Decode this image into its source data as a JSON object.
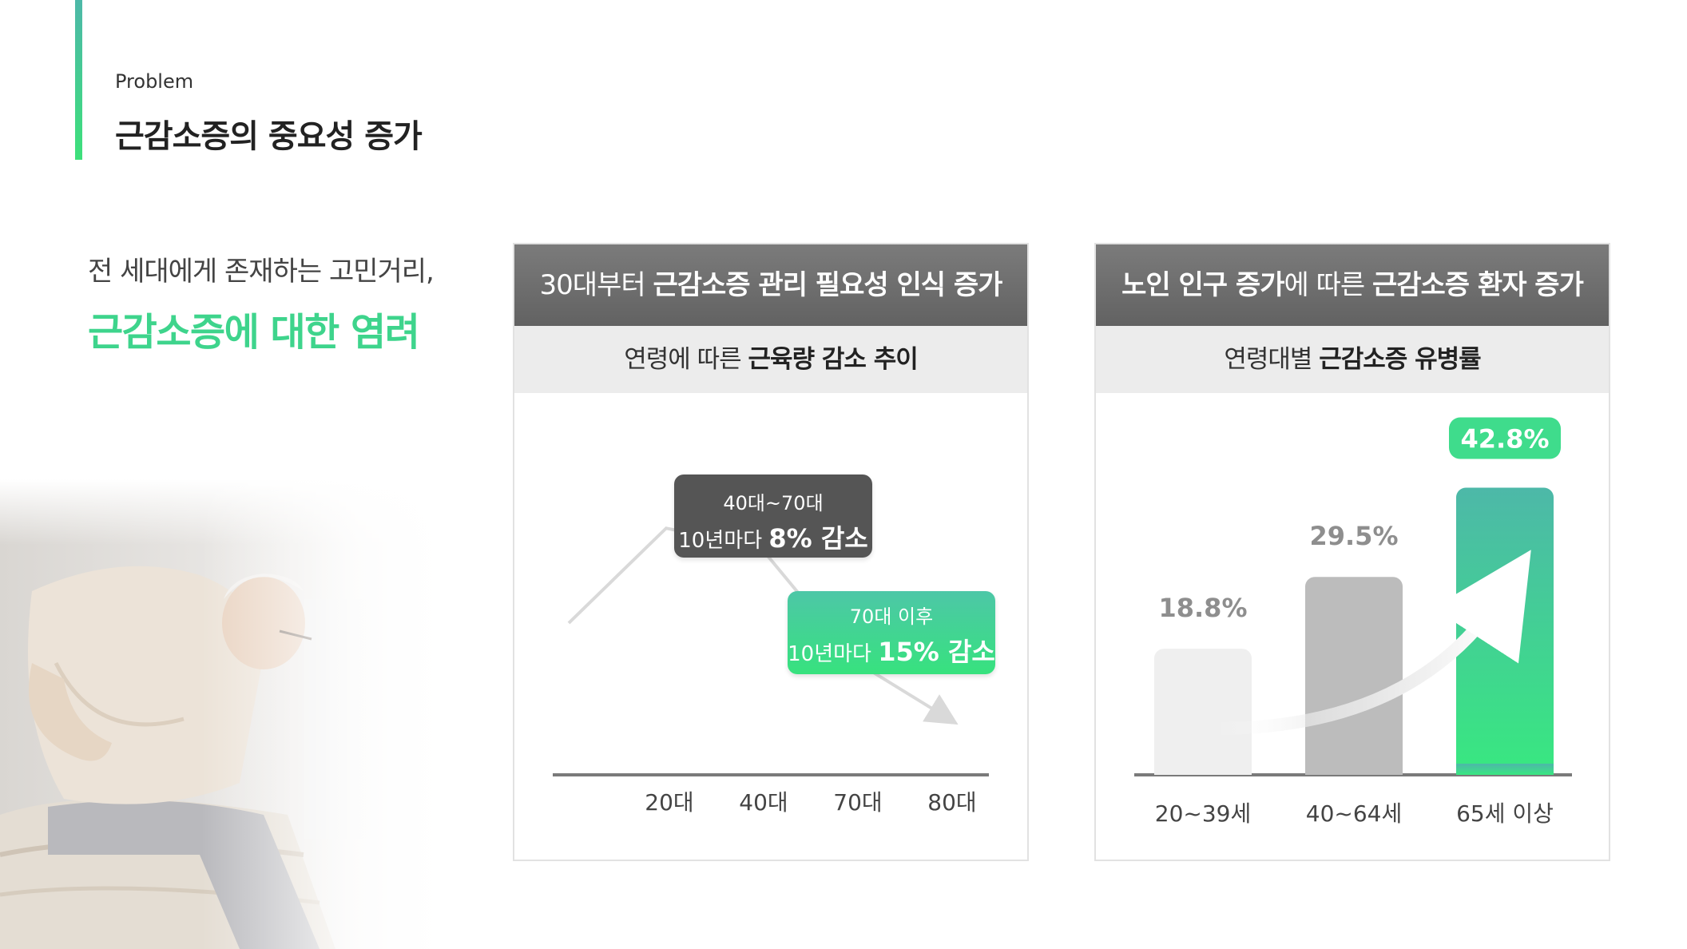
{
  "header": {
    "eyebrow": "Problem",
    "title": "근감소증의 중요성 증가"
  },
  "intro": {
    "line1": "전 세대에게 존재하는 고민거리,",
    "line2": "근감소증에 대한 염려"
  },
  "colors": {
    "accent_green": "#3ed48c",
    "accent_teal": "#4db8a8",
    "header_gray": "#6b6b6b",
    "bar_light": "#efefef",
    "bar_mid": "#bcbcbc"
  },
  "card_left": {
    "head_plain": "30대부터 ",
    "head_bold": "근감소증 관리 필요성 인식 증가",
    "sub_plain": "연령에 따른 ",
    "sub_bold": "근육량 감소 추이",
    "callout_dark": {
      "line1": "40대~70대",
      "line2_plain": "10년마다 ",
      "line2_bold": "8% 감소"
    },
    "callout_green": {
      "line1": "70대 이후",
      "line2_plain": "10년마다 ",
      "line2_bold": "15% 감소"
    }
  },
  "card_right": {
    "head_bold1": "노인 인구 증가",
    "head_plain": "에 따른 ",
    "head_bold2": "근감소증 환자 증가",
    "sub_plain": "연령대별 ",
    "sub_bold": "근감소증 유병률"
  },
  "chart_data": [
    {
      "type": "line",
      "title": "연령에 따른 근육량 감소 추이",
      "categories": [
        "20대",
        "40대",
        "70대",
        "80대"
      ],
      "x": [
        10,
        20,
        40,
        70,
        80
      ],
      "values": [
        100,
        125,
        120,
        90,
        75
      ],
      "ylim": [
        60,
        140
      ],
      "note": "",
      "grid": false
    },
    {
      "type": "bar",
      "title": "연령대별 근감소증 유병률",
      "categories": [
        "20~39세",
        "40~64세",
        "65세 이상"
      ],
      "values": [
        18.8,
        29.5,
        42.8
      ],
      "labels": [
        "18.8%",
        "29.5%",
        "42.8%"
      ],
      "ylim": [
        0,
        50
      ],
      "grid": false
    }
  ]
}
